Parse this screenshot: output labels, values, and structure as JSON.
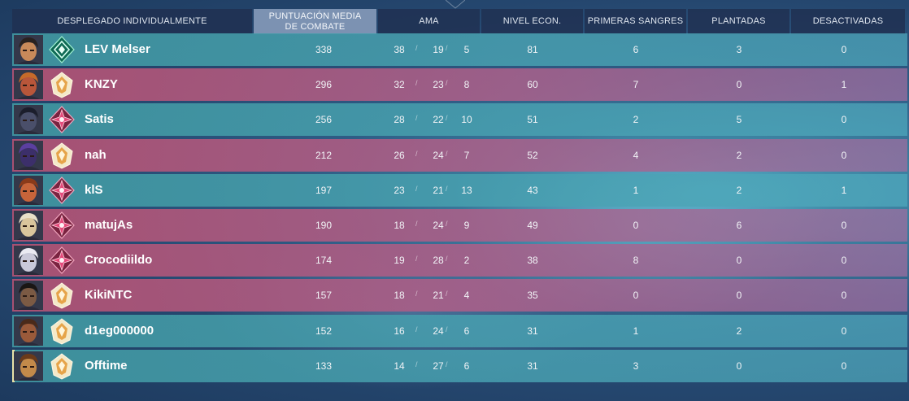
{
  "header": {
    "sort_label": "DESPLEGADO INDIVIDUALMENTE",
    "acs_line1": "PUNTUACIÓN MEDIA",
    "acs_line2": "DE COMBATE",
    "kda": "AMA",
    "econ": "NIVEL ECON.",
    "first_bloods": "PRIMERAS SANGRES",
    "plants": "PLANTADAS",
    "defuses": "DESACTIVADAS"
  },
  "colors": {
    "team_ally": "#4096a0",
    "team_enemy": "#b25273",
    "header_bg": "#203050",
    "active_header": "#8ca0be"
  },
  "players": [
    {
      "name": "LEV Melser",
      "team": "ally",
      "rank_icon": "ascendant-rank-icon",
      "agent_icon": "agent-portrait-icon",
      "acs": "338",
      "k": "38",
      "d": "19",
      "a": "5",
      "econ": "81",
      "fb": "6",
      "plants": "3",
      "defuses": "0"
    },
    {
      "name": "KNZY",
      "team": "enemy",
      "rank_icon": "radiant-rank-icon",
      "agent_icon": "agent-portrait-icon",
      "acs": "296",
      "k": "32",
      "d": "23",
      "a": "8",
      "econ": "60",
      "fb": "7",
      "plants": "0",
      "defuses": "1"
    },
    {
      "name": "Satis",
      "team": "ally",
      "rank_icon": "immortal-rank-icon",
      "agent_icon": "agent-portrait-icon",
      "acs": "256",
      "k": "28",
      "d": "22",
      "a": "10",
      "econ": "51",
      "fb": "2",
      "plants": "5",
      "defuses": "0"
    },
    {
      "name": "nah",
      "team": "enemy",
      "rank_icon": "radiant-rank-icon",
      "agent_icon": "agent-portrait-icon",
      "acs": "212",
      "k": "26",
      "d": "24",
      "a": "7",
      "econ": "52",
      "fb": "4",
      "plants": "2",
      "defuses": "0"
    },
    {
      "name": "klS",
      "team": "ally",
      "rank_icon": "immortal-rank-icon",
      "agent_icon": "agent-portrait-icon",
      "acs": "197",
      "k": "23",
      "d": "21",
      "a": "13",
      "econ": "43",
      "fb": "1",
      "plants": "2",
      "defuses": "1"
    },
    {
      "name": "matujAs",
      "team": "enemy",
      "rank_icon": "immortal-rank-icon",
      "agent_icon": "agent-portrait-icon",
      "acs": "190",
      "k": "18",
      "d": "24",
      "a": "9",
      "econ": "49",
      "fb": "0",
      "plants": "6",
      "defuses": "0"
    },
    {
      "name": "Crocodiildo",
      "team": "enemy",
      "rank_icon": "immortal-rank-icon",
      "agent_icon": "agent-portrait-icon",
      "acs": "174",
      "k": "19",
      "d": "28",
      "a": "2",
      "econ": "38",
      "fb": "8",
      "plants": "0",
      "defuses": "0"
    },
    {
      "name": "KikiNTC",
      "team": "enemy",
      "rank_icon": "radiant-rank-icon",
      "agent_icon": "agent-portrait-icon",
      "acs": "157",
      "k": "18",
      "d": "21",
      "a": "4",
      "econ": "35",
      "fb": "0",
      "plants": "0",
      "defuses": "0"
    },
    {
      "name": "d1eg000000",
      "team": "ally",
      "rank_icon": "radiant-rank-icon",
      "agent_icon": "agent-portrait-icon",
      "acs": "152",
      "k": "16",
      "d": "24",
      "a": "6",
      "econ": "31",
      "fb": "1",
      "plants": "2",
      "defuses": "0"
    },
    {
      "name": "Offtime",
      "team": "ally",
      "rank_icon": "radiant-rank-icon",
      "agent_icon": "agent-portrait-icon",
      "acs": "133",
      "k": "14",
      "d": "27",
      "a": "6",
      "econ": "31",
      "fb": "3",
      "plants": "0",
      "defuses": "0"
    }
  ]
}
